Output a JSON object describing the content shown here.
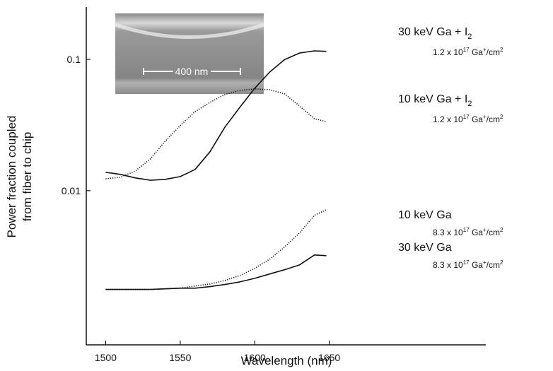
{
  "chart_data": {
    "type": "line",
    "log_y": true,
    "x_label": "Wavelength (nm)",
    "y_label": [
      "Power fraction coupled",
      "from fiber to chip"
    ],
    "xlim": [
      1487,
      1755
    ],
    "ylim": [
      0.00067,
      0.25
    ],
    "xticks": [
      1500,
      1550,
      1600,
      1650
    ],
    "yticks": [
      0.01,
      0.1
    ],
    "inset_label": "400 nm",
    "x": [
      1500,
      1510,
      1520,
      1530,
      1540,
      1550,
      1560,
      1570,
      1580,
      1590,
      1600,
      1610,
      1620,
      1630,
      1640,
      1648
    ],
    "series": [
      {
        "color": "#111111",
        "dash": "solid",
        "values": [
          0.0138,
          0.0133,
          0.0125,
          0.012,
          0.0122,
          0.0128,
          0.0145,
          0.0198,
          0.0305,
          0.0431,
          0.0602,
          0.08,
          0.0995,
          0.1116,
          0.116,
          0.115
        ]
      },
      {
        "color": "#111111",
        "dash": "dotted",
        "values": [
          0.01233,
          0.01265,
          0.01415,
          0.01746,
          0.0238,
          0.0313,
          0.04,
          0.047,
          0.0539,
          0.058,
          0.0595,
          0.0587,
          0.0546,
          0.0442,
          0.0353,
          0.0336
        ]
      },
      {
        "color": "#111111",
        "dash": "dotted",
        "values": [
          0.00177,
          0.00177,
          0.00177,
          0.00177,
          0.00179,
          0.00181,
          0.00188,
          0.00195,
          0.00207,
          0.00226,
          0.00256,
          0.00301,
          0.00372,
          0.00476,
          0.00648,
          0.00716
        ]
      },
      {
        "color": "#111111",
        "dash": "solid",
        "values": [
          0.00177,
          0.00177,
          0.00177,
          0.00177,
          0.00179,
          0.00181,
          0.00181,
          0.00186,
          0.00193,
          0.00202,
          0.00215,
          0.00232,
          0.0025,
          0.00272,
          0.00324,
          0.0032
        ]
      }
    ],
    "annotations": [
      {
        "label": [
          "30 keV Ga + I",
          "2"
        ],
        "dose": [
          "1.2 x 10",
          "17",
          " Ga",
          "+",
          "/cm",
          "2"
        ]
      },
      {
        "label": [
          "10 keV Ga + I",
          "2"
        ],
        "dose": [
          "1.2 x 10",
          "17",
          " Ga",
          "+",
          "/cm",
          "2"
        ]
      },
      {
        "label": [
          "10 keV Ga"
        ],
        "dose": [
          "8.3 x 10",
          "17",
          " Ga",
          "+",
          "/cm",
          "2"
        ]
      },
      {
        "label": [
          "30 keV Ga"
        ],
        "dose": [
          "8.3 x 10",
          "17",
          " Ga",
          "+",
          "/cm",
          "2"
        ]
      }
    ]
  }
}
